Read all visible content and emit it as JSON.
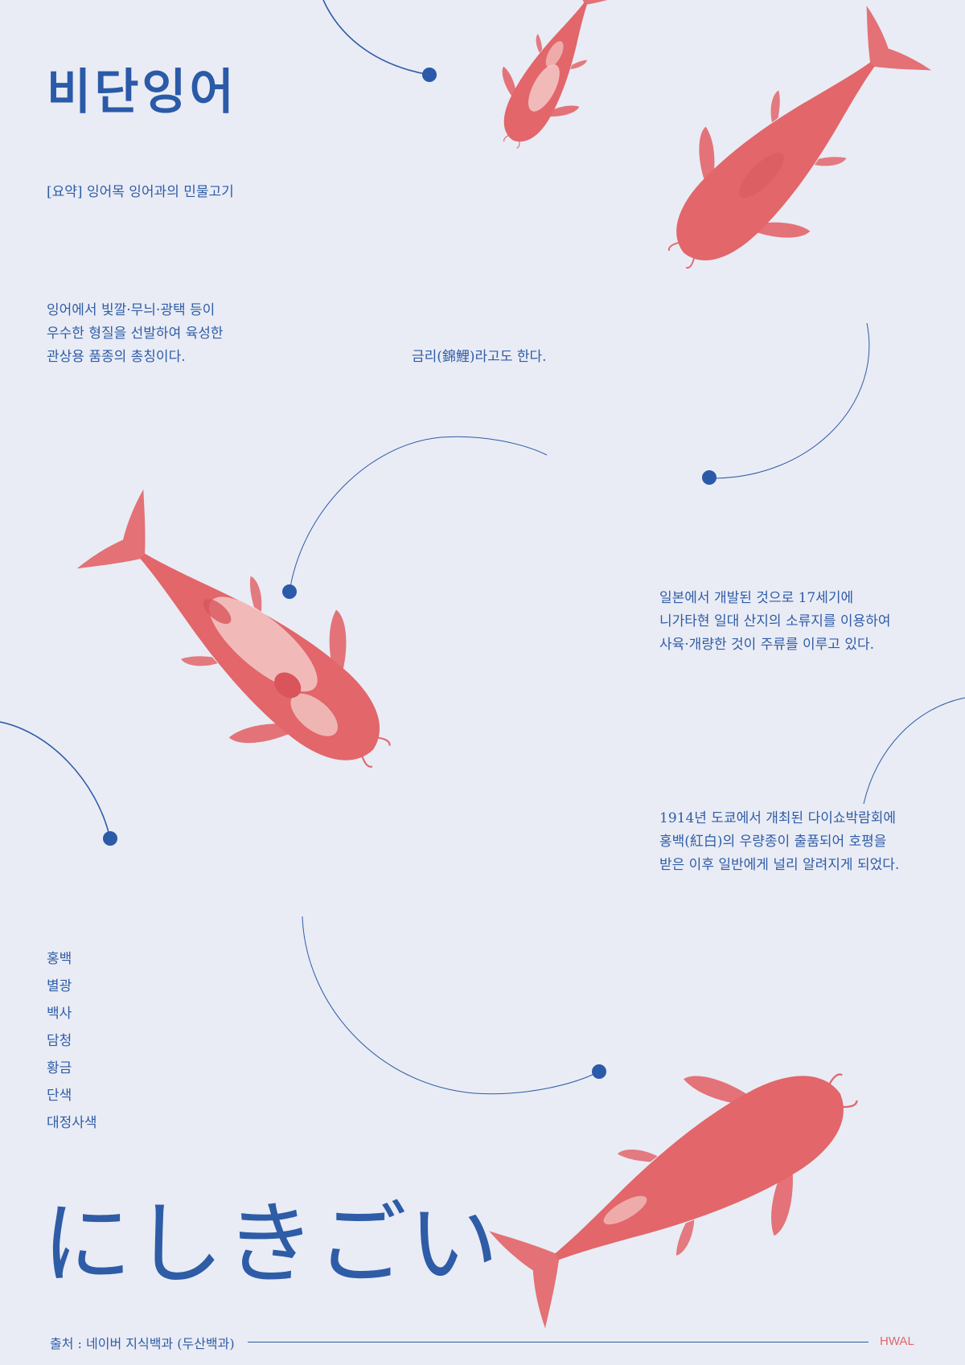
{
  "title": "비단잉어",
  "summary": "[요약] 잉어목 잉어과의 민물고기",
  "intro": [
    "잉어에서 빛깔·무늬·광택 등이",
    "우수한 형질을 선발하여 육성한",
    "관상용 품종의 총칭이다."
  ],
  "alias": "금리(錦鯉)라고도 한다.",
  "origin": [
    "일본에서 개발된 것으로 17세기에",
    "니가타현 일대 산지의 소류지를 이용하여",
    "사육·개량한 것이 주류를 이루고 있다."
  ],
  "history": [
    "1914년 도쿄에서 개최된 다이쇼박람회에",
    "홍백(紅白)의 우량종이 출품되어 호평을",
    "받은 이후 일반에게 널리 알려지게 되었다."
  ],
  "varieties": [
    "홍백",
    "별광",
    "백사",
    "담청",
    "황금",
    "단색",
    "대정사색"
  ],
  "japanese_title": "にしきごい",
  "source": "출처 : 네이버 지식백과 (두산백과)",
  "credit": "HWAL",
  "colors": {
    "background": "#e9ecf5",
    "accent_blue": "#2f5ca6",
    "koi_red": "#e2666a",
    "koi_pale": "#f3c9c6"
  },
  "icons": [
    "koi-fish",
    "orbit-dot"
  ]
}
